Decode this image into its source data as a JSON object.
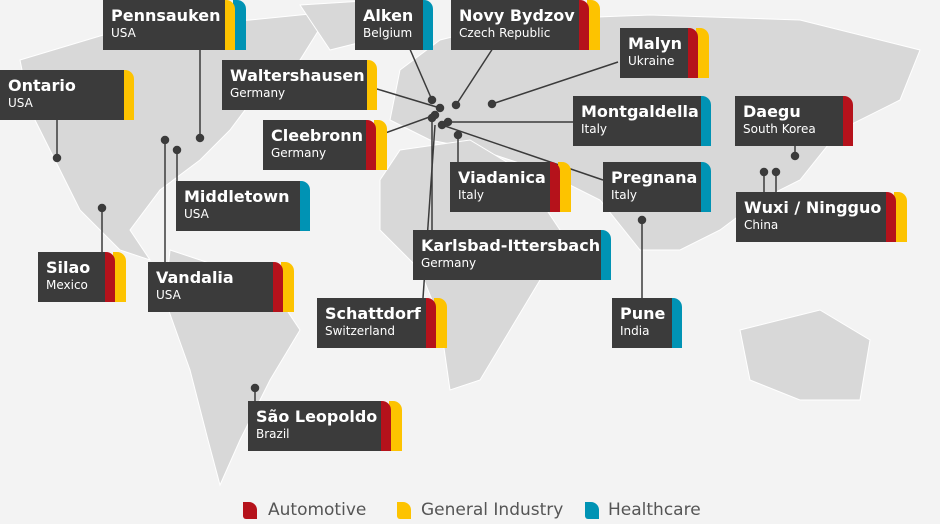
{
  "locations": [
    {
      "name": "Pennsauken",
      "country": "USA",
      "sectors": [
        1,
        2
      ]
    },
    {
      "name": "Alken",
      "country": "Belgium",
      "sectors": [
        2
      ]
    },
    {
      "name": "Novy Bydzov",
      "country": "Czech Republic",
      "sectors": [
        0,
        1
      ]
    },
    {
      "name": "Malyn",
      "country": "Ukraine",
      "sectors": [
        0,
        1
      ]
    },
    {
      "name": "Ontario",
      "country": "USA",
      "sectors": [
        1
      ]
    },
    {
      "name": "Waltershausen",
      "country": "Germany",
      "sectors": [
        1
      ]
    },
    {
      "name": "Cleebronn",
      "country": "Germany",
      "sectors": [
        0,
        1
      ]
    },
    {
      "name": "Montgaldella",
      "country": "Italy",
      "sectors": [
        2
      ]
    },
    {
      "name": "Daegu",
      "country": "South Korea",
      "sectors": [
        0
      ]
    },
    {
      "name": "Middletown",
      "country": "USA",
      "sectors": [
        2
      ]
    },
    {
      "name": "Viadanica",
      "country": "Italy",
      "sectors": [
        0,
        1
      ]
    },
    {
      "name": "Pregnana",
      "country": "Italy",
      "sectors": [
        2
      ]
    },
    {
      "name": "Wuxi / Ningguo",
      "country": "China",
      "sectors": [
        0,
        1
      ]
    },
    {
      "name": "Karlsbad-Ittersbach",
      "country": "Germany",
      "sectors": [
        2
      ]
    },
    {
      "name": "Silao",
      "country": "Mexico",
      "sectors": [
        0,
        1
      ]
    },
    {
      "name": "Vandalia",
      "country": "USA",
      "sectors": [
        0,
        1
      ]
    },
    {
      "name": "Schattdorf",
      "country": "Switzerland",
      "sectors": [
        0,
        1
      ]
    },
    {
      "name": "Pune",
      "country": "India",
      "sectors": [
        2
      ]
    },
    {
      "name": "São Leopoldo",
      "country": "Brazil",
      "sectors": [
        0,
        1
      ]
    }
  ],
  "legend": [
    {
      "label": "Automotive",
      "color": "#b5121b"
    },
    {
      "label": "General Industry",
      "color": "#fdc300"
    },
    {
      "label": "Healthcare",
      "color": "#0093b4"
    }
  ]
}
